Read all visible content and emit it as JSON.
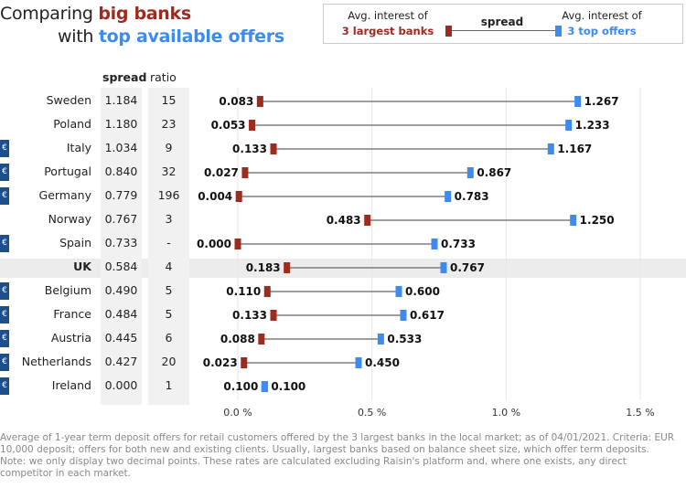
{
  "title": {
    "line1_prefix": "Comparing ",
    "line1_highlight": "big banks",
    "line2_prefix": "with ",
    "line2_highlight": "top available offers"
  },
  "legend": {
    "left_line1": "Avg. interest of",
    "left_line2": "3 largest banks",
    "center": "spread",
    "right_line1": "Avg. interest of",
    "right_line2": "3 top offers"
  },
  "columns": {
    "spread": "spread",
    "ratio": "ratio"
  },
  "colors": {
    "big_banks": "#9b2c1f",
    "top_offers": "#3d8bf0",
    "connector": "#666666",
    "euro_badge": "#1d4f8c"
  },
  "euro_icon": "€",
  "footnote": "Average of 1-year term deposit offers for retail customers offered by the 3 largest banks in the local market; as of 04/01/2021. Criteria: EUR 10,000 deposit; offers for both new and existing clients. Usually, largest banks based on balance sheet size, which offer term deposits. Note: we only display two decimal points. These rates are calculated excluding Raisin's platform and, where one exists, any direct competitor in each market.",
  "chart_data": {
    "type": "dumbbell",
    "x_unit": "%",
    "xlim": [
      0,
      1.5
    ],
    "x_ticks": [
      0,
      0.5,
      1,
      1.5
    ],
    "x_tick_labels": [
      "0.0 %",
      "0.5 %",
      "1.0 %",
      "1.5 %"
    ],
    "grid": "vertical",
    "rows": [
      {
        "country": "Sweden",
        "spread": "1.184",
        "ratio": "15",
        "big": 0.083,
        "top": 1.267,
        "euro": false,
        "highlight": false
      },
      {
        "country": "Poland",
        "spread": "1.180",
        "ratio": "23",
        "big": 0.053,
        "top": 1.233,
        "euro": false,
        "highlight": false
      },
      {
        "country": "Italy",
        "spread": "1.034",
        "ratio": "9",
        "big": 0.133,
        "top": 1.167,
        "euro": true,
        "highlight": false
      },
      {
        "country": "Portugal",
        "spread": "0.840",
        "ratio": "32",
        "big": 0.027,
        "top": 0.867,
        "euro": true,
        "highlight": false
      },
      {
        "country": "Germany",
        "spread": "0.779",
        "ratio": "196",
        "big": 0.004,
        "top": 0.783,
        "euro": true,
        "highlight": false
      },
      {
        "country": "Norway",
        "spread": "0.767",
        "ratio": "3",
        "big": 0.483,
        "top": 1.25,
        "euro": false,
        "highlight": false
      },
      {
        "country": "Spain",
        "spread": "0.733",
        "ratio": "-",
        "big": 0.0,
        "top": 0.733,
        "euro": true,
        "highlight": false
      },
      {
        "country": "UK",
        "spread": "0.584",
        "ratio": "4",
        "big": 0.183,
        "top": 0.767,
        "euro": false,
        "highlight": true
      },
      {
        "country": "Belgium",
        "spread": "0.490",
        "ratio": "5",
        "big": 0.11,
        "top": 0.6,
        "euro": true,
        "highlight": false
      },
      {
        "country": "France",
        "spread": "0.484",
        "ratio": "5",
        "big": 0.133,
        "top": 0.617,
        "euro": true,
        "highlight": false
      },
      {
        "country": "Austria",
        "spread": "0.445",
        "ratio": "6",
        "big": 0.088,
        "top": 0.533,
        "euro": true,
        "highlight": false
      },
      {
        "country": "Netherlands",
        "spread": "0.427",
        "ratio": "20",
        "big": 0.023,
        "top": 0.45,
        "euro": true,
        "highlight": false
      },
      {
        "country": "Ireland",
        "spread": "0.000",
        "ratio": "1",
        "big": 0.1,
        "top": 0.1,
        "euro": true,
        "highlight": false
      }
    ]
  }
}
